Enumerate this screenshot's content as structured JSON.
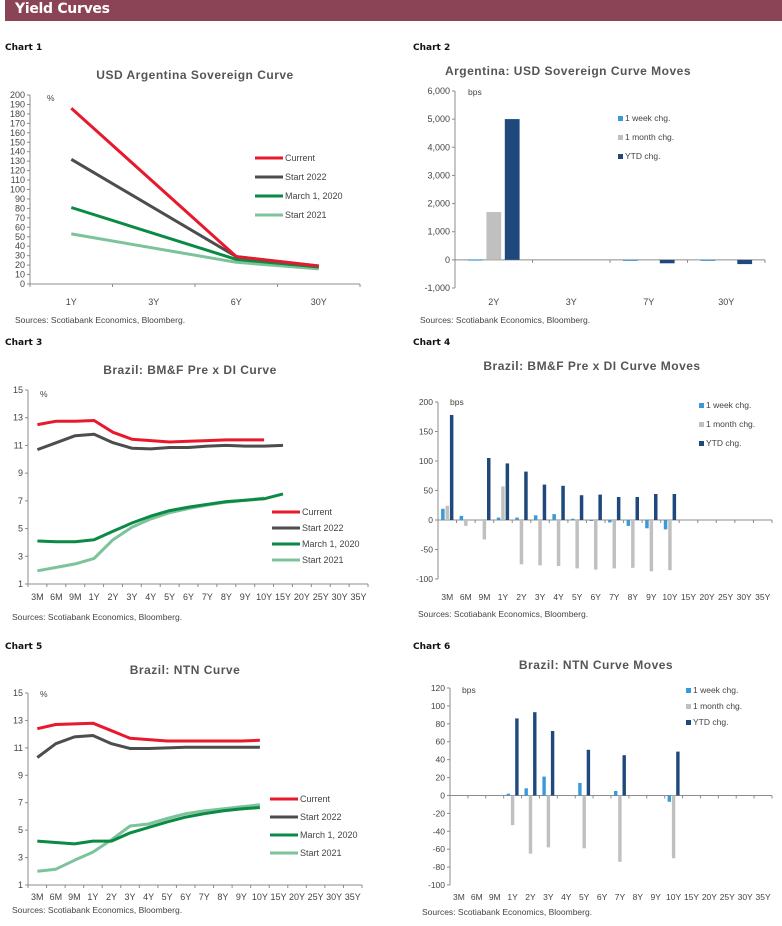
{
  "header": {
    "title": "Yield Curves"
  },
  "colors": {
    "banner": "#8b4456",
    "current": "#e8192c",
    "start2022": "#4d4d4d",
    "march2020": "#0a8a45",
    "start2021": "#7cc29a",
    "week": "#3a9ad9",
    "month": "#c0c0c0",
    "ytd": "#1f497d",
    "axis": "#8c8c8c",
    "text": "#444444"
  },
  "chart_labels": [
    "Chart 1",
    "Chart 2",
    "Chart 3",
    "Chart 4",
    "Chart 5",
    "Chart 6"
  ],
  "chart_data": [
    {
      "type": "line",
      "title": "USD Argentina Sovereign Curve",
      "ylabel": "%",
      "ylim": [
        0,
        200
      ],
      "yticks": [
        0,
        10,
        20,
        30,
        40,
        50,
        60,
        70,
        80,
        90,
        100,
        110,
        120,
        130,
        140,
        150,
        160,
        170,
        180,
        190,
        200
      ],
      "x": [
        "1Y",
        "3Y",
        "6Y",
        "30Y"
      ],
      "series": [
        {
          "name": "Current",
          "values": [
            186,
            null,
            29,
            19
          ],
          "key": "current"
        },
        {
          "name": "Start 2022",
          "values": [
            132,
            null,
            29,
            19
          ],
          "key": "start2022"
        },
        {
          "name": "March 1, 2020",
          "values": [
            81,
            null,
            26,
            18
          ],
          "key": "march2020"
        },
        {
          "name": "Start 2021",
          "values": [
            53,
            null,
            23,
            16
          ],
          "key": "start2021"
        }
      ],
      "legend": "right",
      "source": "Sources: Scotiabank Economics, Bloomberg."
    },
    {
      "type": "bar",
      "title": "Argentina: USD Sovereign Curve Moves",
      "ylabel": "bps",
      "ylim": [
        -1000,
        6000
      ],
      "yticks": [
        -1000,
        0,
        1000,
        2000,
        3000,
        4000,
        5000,
        6000
      ],
      "ytick_labels": [
        "-1,000",
        "0",
        "1,000",
        "2,000",
        "3,000",
        "4,000",
        "5,000",
        "6,000"
      ],
      "categories": [
        "2Y",
        "3Y",
        "7Y",
        "30Y"
      ],
      "series": [
        {
          "name": "1 week chg.",
          "values": [
            10,
            0,
            -15,
            -20
          ],
          "key": "week"
        },
        {
          "name": "1 month chg.",
          "values": [
            1700,
            0,
            0,
            0
          ],
          "key": "month"
        },
        {
          "name": "YTD chg.",
          "values": [
            5000,
            0,
            -120,
            -150
          ],
          "key": "ytd"
        }
      ],
      "legend": "top-right",
      "source": "Sources: Scotiabank Economics, Bloomberg."
    },
    {
      "type": "line",
      "title": "Brazil: BM&F Pre x DI Curve",
      "ylabel": "%",
      "ylim": [
        1,
        15
      ],
      "yticks": [
        1,
        3,
        5,
        7,
        9,
        11,
        13,
        15
      ],
      "x": [
        "3M",
        "6M",
        "9M",
        "1Y",
        "2Y",
        "3Y",
        "4Y",
        "5Y",
        "6Y",
        "7Y",
        "8Y",
        "9Y",
        "10Y",
        "15Y",
        "20Y",
        "25Y",
        "30Y",
        "35Y"
      ],
      "series": [
        {
          "name": "Current",
          "values": [
            12.5,
            12.75,
            12.75,
            12.8,
            11.95,
            11.45,
            11.35,
            11.25,
            11.3,
            11.35,
            11.4,
            11.4,
            11.4,
            null,
            null,
            null,
            null,
            null
          ],
          "key": "current"
        },
        {
          "name": "Start 2022",
          "values": [
            10.7,
            11.2,
            11.7,
            11.8,
            11.2,
            10.8,
            10.75,
            10.85,
            10.85,
            10.95,
            11.0,
            10.95,
            10.95,
            11.0,
            null,
            null,
            null,
            null
          ],
          "key": "start2022"
        },
        {
          "name": "March 1, 2020",
          "values": [
            4.1,
            4.05,
            4.05,
            4.2,
            4.8,
            5.4,
            5.9,
            6.3,
            6.55,
            6.75,
            6.95,
            7.05,
            7.15,
            7.5,
            null,
            null,
            null,
            null
          ],
          "key": "march2020"
        },
        {
          "name": "Start 2021",
          "values": [
            1.95,
            2.2,
            2.45,
            2.85,
            4.2,
            5.1,
            5.7,
            6.15,
            6.45,
            6.7,
            6.9,
            7.05,
            7.2,
            null,
            null,
            null,
            null,
            null
          ],
          "key": "start2021"
        }
      ],
      "legend": "right",
      "source": "Sources: Scotiabank Economics, Bloomberg."
    },
    {
      "type": "bar",
      "title": "Brazil: BM&F Pre x DI Curve Moves",
      "ylabel": "bps",
      "ylim": [
        -100,
        200
      ],
      "yticks": [
        -100,
        -50,
        0,
        50,
        100,
        150,
        200
      ],
      "categories": [
        "3M",
        "6M",
        "9M",
        "1Y",
        "2Y",
        "3Y",
        "4Y",
        "5Y",
        "6Y",
        "7Y",
        "8Y",
        "9Y",
        "10Y",
        "15Y",
        "20Y",
        "25Y",
        "30Y",
        "35Y"
      ],
      "series": [
        {
          "name": "1 week chg.",
          "values": [
            19,
            7,
            0,
            4,
            4,
            8,
            10,
            2,
            -1,
            -4,
            -10,
            -14,
            -16,
            null,
            null,
            null,
            null,
            null
          ],
          "key": "week"
        },
        {
          "name": "1 month chg.",
          "values": [
            24,
            -10,
            -33,
            57,
            -75,
            -77,
            -78,
            -82,
            -84,
            -82,
            -81,
            -87,
            -85,
            null,
            null,
            null,
            null,
            null
          ],
          "key": "month"
        },
        {
          "name": "YTD chg.",
          "values": [
            178,
            0,
            105,
            96,
            82,
            60,
            58,
            42,
            43,
            39,
            39,
            44,
            44,
            null,
            null,
            null,
            null,
            null
          ],
          "key": "ytd"
        }
      ],
      "legend": "top-right",
      "source": "Sources: Scotiabank Economics, Bloomberg."
    },
    {
      "type": "line",
      "title": "Brazil: NTN Curve",
      "ylabel": "%",
      "ylim": [
        1,
        15
      ],
      "yticks": [
        1,
        3,
        5,
        7,
        9,
        11,
        13,
        15
      ],
      "x": [
        "3M",
        "6M",
        "9M",
        "1Y",
        "2Y",
        "3Y",
        "4Y",
        "5Y",
        "6Y",
        "7Y",
        "8Y",
        "9Y",
        "10Y",
        "15Y",
        "20Y",
        "25Y",
        "30Y",
        "35Y"
      ],
      "series": [
        {
          "name": "Current",
          "values": [
            12.4,
            12.7,
            12.75,
            12.8,
            12.25,
            11.7,
            11.6,
            11.5,
            11.5,
            11.5,
            11.5,
            11.5,
            11.55,
            null,
            null,
            null,
            null,
            null
          ],
          "key": "current"
        },
        {
          "name": "Start 2022",
          "values": [
            10.3,
            11.3,
            11.8,
            11.9,
            11.3,
            10.95,
            10.95,
            11.0,
            11.05,
            11.05,
            11.05,
            11.05,
            11.05,
            null,
            null,
            null,
            null,
            null
          ],
          "key": "start2022"
        },
        {
          "name": "March 1, 2020",
          "values": [
            4.2,
            4.1,
            4.0,
            4.2,
            4.2,
            4.8,
            5.2,
            5.6,
            5.95,
            6.2,
            6.4,
            6.55,
            6.65,
            null,
            null,
            null,
            null,
            null
          ],
          "key": "march2020"
        },
        {
          "name": "Start 2021",
          "values": [
            2.0,
            2.15,
            2.8,
            3.4,
            4.3,
            5.3,
            5.45,
            5.85,
            6.2,
            6.4,
            6.55,
            6.7,
            6.85,
            null,
            null,
            null,
            null,
            null
          ],
          "key": "start2021"
        }
      ],
      "legend": "right",
      "source": "Sources: Scotiabank Economics, Bloomberg."
    },
    {
      "type": "bar",
      "title": "Brazil: NTN Curve Moves",
      "ylabel": "bps",
      "ylim": [
        -100,
        120
      ],
      "yticks": [
        -100,
        -80,
        -60,
        -40,
        -20,
        0,
        20,
        40,
        60,
        80,
        100,
        120
      ],
      "categories": [
        "3M",
        "6M",
        "9M",
        "1Y",
        "2Y",
        "3Y",
        "4Y",
        "5Y",
        "6Y",
        "7Y",
        "8Y",
        "9Y",
        "10Y",
        "15Y",
        "20Y",
        "25Y",
        "30Y",
        "35Y"
      ],
      "series": [
        {
          "name": "1 week chg.",
          "values": [
            null,
            null,
            null,
            2,
            8,
            21,
            null,
            14,
            null,
            5,
            null,
            null,
            -7,
            null,
            null,
            null,
            null,
            null
          ],
          "key": "week"
        },
        {
          "name": "1 month chg.",
          "values": [
            null,
            null,
            null,
            -33,
            -65,
            -58,
            null,
            -59,
            null,
            -74,
            null,
            null,
            -70,
            null,
            null,
            null,
            null,
            null
          ],
          "key": "month"
        },
        {
          "name": "YTD chg.",
          "values": [
            null,
            null,
            null,
            86,
            93,
            72,
            null,
            51,
            null,
            45,
            null,
            null,
            49,
            null,
            null,
            null,
            null,
            null
          ],
          "key": "ytd"
        }
      ],
      "legend": "top-right",
      "source": "Sources: Scotiabank Economics, Bloomberg."
    }
  ]
}
